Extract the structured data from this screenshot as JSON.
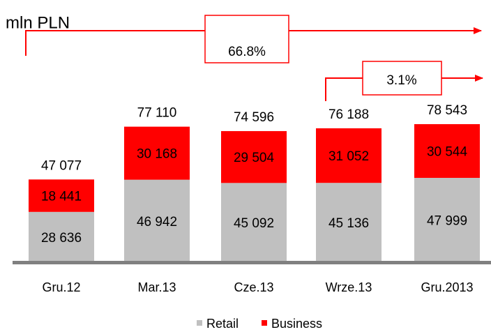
{
  "chart_data": {
    "type": "stacked_bar",
    "unit_label": "mln PLN",
    "categories": [
      "Gru.12",
      "Mar.13",
      "Cze.13",
      "Wrze.13",
      "Gru.2013"
    ],
    "series": [
      {
        "name": "Retail",
        "color": "#c0c0c0",
        "values": [
          28636,
          46942,
          45092,
          45136,
          47999
        ],
        "value_labels": [
          "28 636",
          "46 942",
          "45 092",
          "45 136",
          "47 999"
        ]
      },
      {
        "name": "Business",
        "color": "#ff0000",
        "values": [
          18441,
          30168,
          29504,
          31052,
          30544
        ],
        "value_labels": [
          "18 441",
          "30 168",
          "29 504",
          "31 052",
          "30 544"
        ]
      }
    ],
    "totals": {
      "values": [
        47077,
        77110,
        74596,
        76188,
        78543
      ],
      "value_labels": [
        "47 077",
        "77 110",
        "74 596",
        "76 188",
        "78 543"
      ]
    },
    "annotations": [
      "66.8%",
      "3.1%"
    ]
  }
}
